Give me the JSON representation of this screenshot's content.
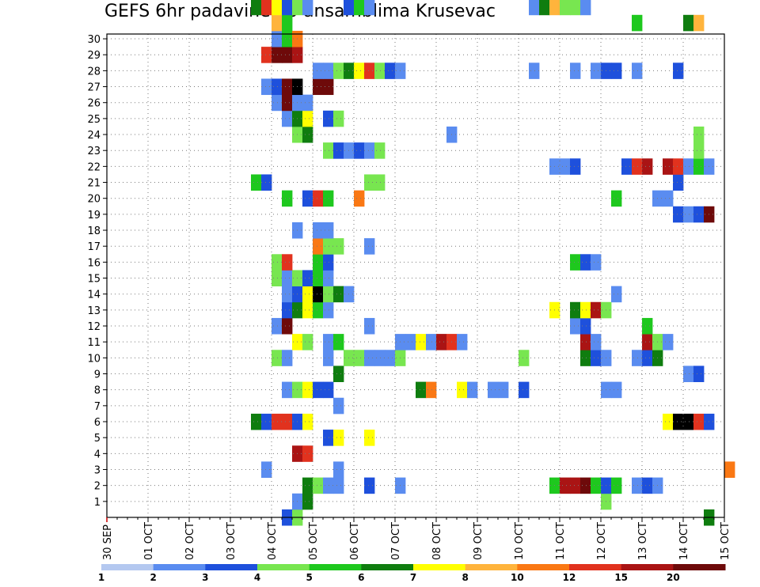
{
  "chart_data": {
    "type": "heatmap",
    "title": "GEFS 6hr padavine po ansamblima Krusevac",
    "xlabel": "",
    "ylabel": "",
    "x_ticks": [
      "30 SEP",
      "01 OCT",
      "02 OCT",
      "03 OCT",
      "04 OCT",
      "05 OCT",
      "06 OCT",
      "07 OCT",
      "08 OCT",
      "09 OCT",
      "10 OCT",
      "11 OCT",
      "12 OCT",
      "13 OCT",
      "14 OCT",
      "15 OCT"
    ],
    "xlim": [
      "30 SEP 00Z",
      "15 OCT 00Z"
    ],
    "time_step_hours": 6,
    "y_ticks": [
      1,
      2,
      3,
      4,
      5,
      6,
      7,
      8,
      9,
      10,
      11,
      12,
      13,
      14,
      15,
      16,
      17,
      18,
      19,
      20,
      21,
      22,
      23,
      24,
      25,
      26,
      27,
      28,
      29,
      30
    ],
    "ylim": [
      0,
      30
    ],
    "grid": true,
    "colorbar": {
      "labels": [
        "1",
        "2",
        "3",
        "4",
        "5",
        "6",
        "7",
        "8",
        "10",
        "12",
        "15",
        "20"
      ],
      "colors": [
        "#b4c8f0",
        "#5a8cf0",
        "#1e50dc",
        "#78e650",
        "#1ec81e",
        "#0f7d0f",
        "#ffff00",
        "#ffb43c",
        "#fa7814",
        "#e1321e",
        "#aa1414",
        "#6e0a0a"
      ]
    },
    "rows": [
      {
        "member": 0,
        "cells": [
          [
            17,
            2
          ],
          [
            18,
            3
          ],
          [
            58,
            5
          ],
          [
            70,
            7
          ],
          [
            71,
            9
          ],
          [
            72,
            11
          ]
        ]
      },
      {
        "member": 1,
        "cells": [
          [
            18,
            1
          ],
          [
            19,
            5
          ],
          [
            48,
            3
          ]
        ]
      },
      {
        "member": 2,
        "cells": [
          [
            19,
            5
          ],
          [
            20,
            3
          ],
          [
            21,
            1
          ],
          [
            22,
            1
          ],
          [
            25,
            2
          ],
          [
            28,
            1
          ],
          [
            43,
            4
          ],
          [
            44,
            10
          ],
          [
            45,
            10
          ],
          [
            46,
            11
          ],
          [
            47,
            4
          ],
          [
            48,
            2
          ],
          [
            49,
            4
          ],
          [
            51,
            1
          ],
          [
            52,
            2
          ],
          [
            53,
            1
          ]
        ]
      },
      {
        "member": 3,
        "cells": [
          [
            15,
            1
          ],
          [
            22,
            1
          ],
          [
            60,
            8
          ]
        ]
      },
      {
        "member": 4,
        "cells": [
          [
            18,
            10
          ],
          [
            19,
            9
          ]
        ]
      },
      {
        "member": 5,
        "cells": [
          [
            21,
            2
          ],
          [
            22,
            6
          ],
          [
            25,
            6
          ],
          [
            68,
            8
          ],
          [
            69,
            5
          ],
          [
            70,
            2
          ]
        ]
      },
      {
        "member": 6,
        "cells": [
          [
            14,
            5
          ],
          [
            15,
            2
          ],
          [
            16,
            9
          ],
          [
            17,
            9
          ],
          [
            18,
            2
          ],
          [
            19,
            6
          ],
          [
            54,
            6
          ],
          [
            55,
            12
          ],
          [
            56,
            12
          ],
          [
            57,
            9
          ],
          [
            58,
            2
          ]
        ]
      },
      {
        "member": 7,
        "cells": [
          [
            22,
            1
          ]
        ]
      },
      {
        "member": 8,
        "cells": [
          [
            17,
            1
          ],
          [
            18,
            3
          ],
          [
            19,
            6
          ],
          [
            20,
            2
          ],
          [
            21,
            2
          ],
          [
            30,
            5
          ],
          [
            31,
            8
          ],
          [
            34,
            6
          ],
          [
            35,
            1
          ],
          [
            37,
            1
          ],
          [
            38,
            1
          ],
          [
            40,
            2
          ],
          [
            48,
            1
          ],
          [
            49,
            1
          ]
        ]
      },
      {
        "member": 9,
        "cells": [
          [
            22,
            5
          ],
          [
            56,
            1
          ],
          [
            57,
            2
          ]
        ]
      },
      {
        "member": 10,
        "cells": [
          [
            16,
            3
          ],
          [
            17,
            1
          ],
          [
            21,
            1
          ],
          [
            23,
            3
          ],
          [
            24,
            3
          ],
          [
            25,
            1
          ],
          [
            26,
            1
          ],
          [
            27,
            1
          ],
          [
            28,
            3
          ],
          [
            40,
            3
          ],
          [
            46,
            5
          ],
          [
            47,
            2
          ],
          [
            48,
            1
          ],
          [
            51,
            1
          ],
          [
            52,
            2
          ],
          [
            53,
            5
          ]
        ]
      },
      {
        "member": 11,
        "cells": [
          [
            18,
            6
          ],
          [
            19,
            3
          ],
          [
            21,
            1
          ],
          [
            22,
            4
          ],
          [
            28,
            1
          ],
          [
            29,
            1
          ],
          [
            30,
            6
          ],
          [
            31,
            1
          ],
          [
            32,
            10
          ],
          [
            33,
            9
          ],
          [
            34,
            1
          ],
          [
            46,
            10
          ],
          [
            47,
            1
          ],
          [
            52,
            10
          ],
          [
            53,
            3
          ],
          [
            54,
            1
          ]
        ]
      },
      {
        "member": 12,
        "cells": [
          [
            16,
            1
          ],
          [
            17,
            11
          ],
          [
            25,
            1
          ],
          [
            45,
            1
          ],
          [
            46,
            2
          ],
          [
            52,
            4
          ]
        ]
      },
      {
        "member": 13,
        "cells": [
          [
            17,
            2
          ],
          [
            18,
            5
          ],
          [
            19,
            6
          ],
          [
            20,
            4
          ],
          [
            21,
            1
          ],
          [
            43,
            6
          ],
          [
            45,
            5
          ],
          [
            46,
            6
          ],
          [
            47,
            10
          ],
          [
            48,
            3
          ]
        ]
      },
      {
        "member": 14,
        "cells": [
          [
            17,
            1
          ],
          [
            18,
            2
          ],
          [
            19,
            6
          ],
          [
            20,
            12
          ],
          [
            21,
            3
          ],
          [
            22,
            5
          ],
          [
            23,
            1
          ],
          [
            49,
            1
          ]
        ]
      },
      {
        "member": 15,
        "cells": [
          [
            16,
            3
          ],
          [
            17,
            1
          ],
          [
            18,
            3
          ],
          [
            19,
            2
          ],
          [
            20,
            4
          ],
          [
            21,
            1
          ]
        ]
      },
      {
        "member": 16,
        "cells": [
          [
            16,
            3
          ],
          [
            17,
            9
          ],
          [
            20,
            4
          ],
          [
            21,
            2
          ],
          [
            45,
            4
          ],
          [
            46,
            2
          ],
          [
            47,
            1
          ]
        ]
      },
      {
        "member": 17,
        "cells": [
          [
            20,
            8
          ],
          [
            21,
            3
          ],
          [
            22,
            3
          ],
          [
            25,
            1
          ]
        ]
      },
      {
        "member": 18,
        "cells": [
          [
            18,
            1
          ],
          [
            20,
            1
          ],
          [
            21,
            1
          ]
        ]
      },
      {
        "member": 19,
        "cells": [
          [
            55,
            2
          ],
          [
            56,
            1
          ],
          [
            57,
            2
          ],
          [
            58,
            11
          ]
        ]
      },
      {
        "member": 20,
        "cells": [
          [
            17,
            4
          ],
          [
            19,
            2
          ],
          [
            20,
            9
          ],
          [
            21,
            4
          ],
          [
            24,
            8
          ],
          [
            49,
            4
          ],
          [
            53,
            1
          ],
          [
            54,
            1
          ]
        ]
      },
      {
        "member": 21,
        "cells": [
          [
            14,
            4
          ],
          [
            15,
            2
          ],
          [
            25,
            3
          ],
          [
            26,
            3
          ],
          [
            55,
            2
          ]
        ]
      },
      {
        "member": 22,
        "cells": [
          [
            43,
            1
          ],
          [
            44,
            1
          ],
          [
            45,
            2
          ],
          [
            50,
            2
          ],
          [
            51,
            9
          ],
          [
            52,
            10
          ],
          [
            54,
            10
          ],
          [
            55,
            9
          ],
          [
            56,
            1
          ],
          [
            57,
            4
          ],
          [
            58,
            1
          ]
        ]
      },
      {
        "member": 23,
        "cells": [
          [
            21,
            3
          ],
          [
            22,
            2
          ],
          [
            23,
            1
          ],
          [
            24,
            2
          ],
          [
            25,
            1
          ],
          [
            26,
            3
          ],
          [
            57,
            3
          ]
        ]
      },
      {
        "member": 24,
        "cells": [
          [
            18,
            3
          ],
          [
            19,
            5
          ],
          [
            33,
            1
          ],
          [
            57,
            3
          ]
        ]
      },
      {
        "member": 25,
        "cells": [
          [
            17,
            1
          ],
          [
            18,
            5
          ],
          [
            19,
            6
          ],
          [
            21,
            2
          ],
          [
            22,
            3
          ]
        ]
      },
      {
        "member": 26,
        "cells": [
          [
            16,
            1
          ],
          [
            17,
            11
          ],
          [
            18,
            1
          ],
          [
            19,
            1
          ]
        ]
      },
      {
        "member": 27,
        "cells": [
          [
            15,
            1
          ],
          [
            16,
            2
          ],
          [
            17,
            11
          ],
          [
            18,
            12
          ],
          [
            20,
            11
          ],
          [
            21,
            11
          ]
        ]
      },
      {
        "member": 28,
        "cells": [
          [
            20,
            1
          ],
          [
            21,
            1
          ],
          [
            22,
            3
          ],
          [
            23,
            5
          ],
          [
            24,
            6
          ],
          [
            25,
            9
          ],
          [
            26,
            3
          ],
          [
            27,
            2
          ],
          [
            28,
            1
          ],
          [
            41,
            1
          ],
          [
            45,
            1
          ],
          [
            47,
            1
          ],
          [
            48,
            2
          ],
          [
            49,
            2
          ],
          [
            51,
            1
          ],
          [
            55,
            2
          ]
        ]
      },
      {
        "member": 29,
        "cells": [
          [
            15,
            9
          ],
          [
            16,
            11
          ],
          [
            17,
            11
          ],
          [
            18,
            10
          ]
        ]
      },
      {
        "member": 30,
        "cells": [
          [
            16,
            1
          ],
          [
            17,
            4
          ],
          [
            18,
            8
          ]
        ]
      },
      {
        "member": 31,
        "cells": [
          [
            16,
            7
          ],
          [
            17,
            4
          ],
          [
            51,
            4
          ],
          [
            56,
            5
          ],
          [
            57,
            7
          ]
        ]
      },
      {
        "member": 32,
        "cells": [
          [
            14,
            5
          ],
          [
            15,
            9
          ],
          [
            16,
            6
          ],
          [
            17,
            2
          ],
          [
            18,
            3
          ],
          [
            19,
            1
          ],
          [
            23,
            2
          ],
          [
            24,
            4
          ],
          [
            25,
            1
          ],
          [
            41,
            1
          ],
          [
            42,
            5
          ],
          [
            43,
            7
          ],
          [
            44,
            3
          ],
          [
            45,
            3
          ],
          [
            46,
            1
          ]
        ]
      },
      {
        "member": 33,
        "cells": [
          [
            19,
            2
          ],
          [
            22,
            1
          ],
          [
            49,
            2
          ],
          [
            50,
            1
          ],
          [
            58,
            2
          ],
          [
            59,
            9
          ],
          [
            60,
            6
          ]
        ]
      }
    ]
  }
}
